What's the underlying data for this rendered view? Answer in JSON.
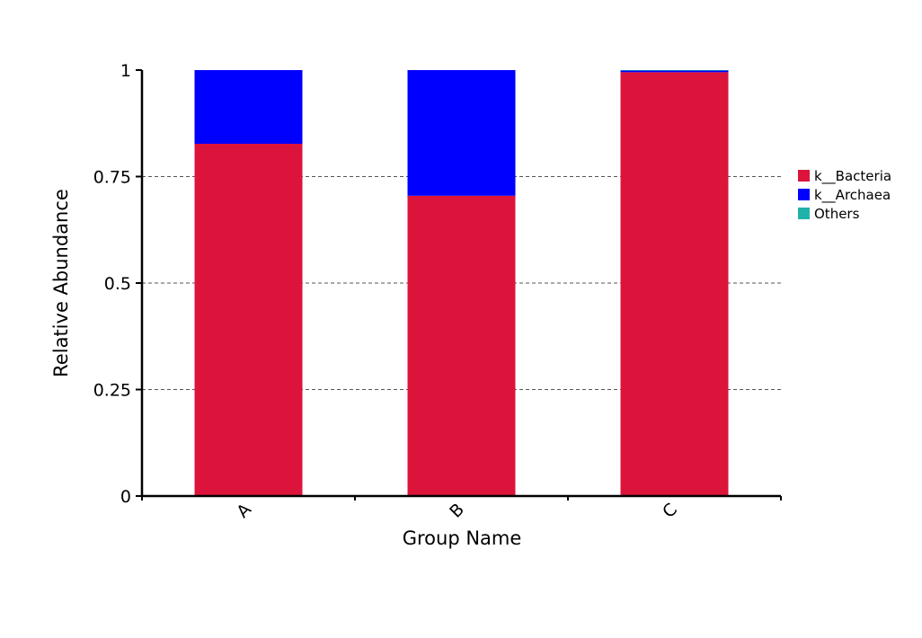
{
  "chart_data": {
    "type": "bar",
    "stacked": true,
    "categories": [
      "A",
      "B",
      "C"
    ],
    "series": [
      {
        "name": "k__Bacteria",
        "color": "#dc143c",
        "values": [
          0.827,
          0.705,
          0.995
        ]
      },
      {
        "name": "k__Archaea",
        "color": "#0000ff",
        "values": [
          0.173,
          0.295,
          0.004
        ]
      },
      {
        "name": "Others",
        "color": "#20b2aa",
        "values": [
          0.0,
          0.0,
          0.001
        ]
      }
    ],
    "xlabel": "Group Name",
    "ylabel": "Relative Abundance",
    "ylim": [
      0,
      1
    ],
    "yticks": [
      {
        "value": 0,
        "label": "0"
      },
      {
        "value": 0.25,
        "label": "0.25"
      },
      {
        "value": 0.5,
        "label": "0.5"
      },
      {
        "value": 0.75,
        "label": "0.75"
      },
      {
        "value": 1,
        "label": "1"
      }
    ],
    "grid": true,
    "legend_position": "right"
  }
}
